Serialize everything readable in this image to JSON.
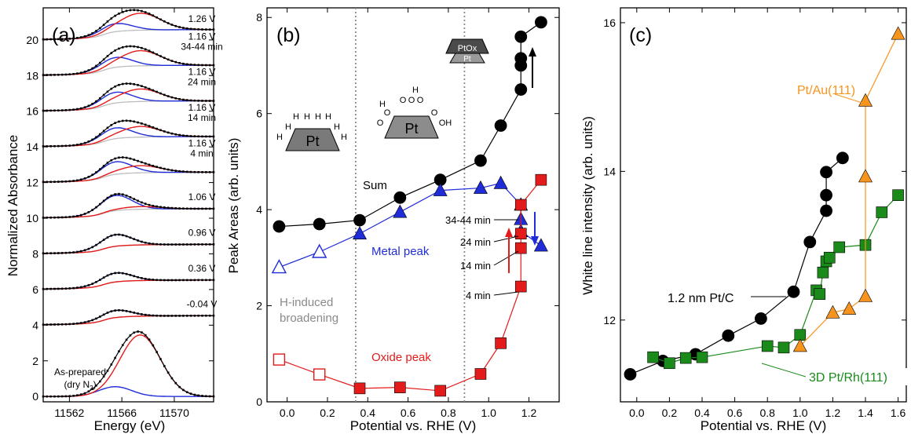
{
  "colors": {
    "black": "#000000",
    "blue": "#1f2cd8",
    "red": "#e31b1b",
    "gray": "#bdbdbd",
    "orange": "#f7941d",
    "green": "#1a8a1a",
    "dotted": "#8a8a8a"
  },
  "chart_data": [
    {
      "type": "line",
      "panel_label": "(a)",
      "xlabel": "Energy (eV)",
      "ylabel": "Normalized Absorbance",
      "xlim": [
        11560,
        11573
      ],
      "ylim": [
        -0.3,
        21.8
      ],
      "xticks": [
        11562,
        11566,
        11570
      ],
      "yticks": [
        0,
        2,
        4,
        6,
        8,
        10,
        12,
        14,
        16,
        18,
        20
      ],
      "spectra": [
        {
          "label": "As-prepared",
          "label2": "(dry N",
          "label2_sub": "2",
          "label2_end": ")",
          "offset": 0.0,
          "edge_step": 0.0,
          "metal": 0.55,
          "oxide": 3.45
        },
        {
          "label": "-0.04 V",
          "offset": 4.0,
          "edge_step": 0.55,
          "metal": 0.4,
          "oxide": 0.0
        },
        {
          "label": "0.36 V",
          "offset": 6.0,
          "edge_step": 0.55,
          "metal": 0.5,
          "oxide": 0.0
        },
        {
          "label": "0.96 V",
          "offset": 8.0,
          "edge_step": 0.55,
          "metal": 0.65,
          "oxide": 0.0
        },
        {
          "label": "1.06 V",
          "offset": 10.0,
          "edge_step": 0.55,
          "metal": 0.85,
          "oxide": 0.15
        },
        {
          "label": "1.16 V",
          "label2": "4 min",
          "offset": 12.0,
          "edge_step": 0.6,
          "metal": 0.7,
          "oxide": 0.4
        },
        {
          "label": "1.16 V",
          "label2": "14 min",
          "offset": 14.0,
          "edge_step": 0.6,
          "metal": 0.6,
          "oxide": 0.6
        },
        {
          "label": "1.16 V",
          "label2": "24 min",
          "offset": 16.0,
          "edge_step": 0.6,
          "metal": 0.6,
          "oxide": 0.7
        },
        {
          "label": "1.16 V",
          "label2": "34-44 min",
          "offset": 18.0,
          "edge_step": 0.6,
          "metal": 0.55,
          "oxide": 0.85
        },
        {
          "label": "1.26 V",
          "offset": 20.0,
          "edge_step": 0.6,
          "metal": 0.45,
          "oxide": 0.95
        }
      ]
    },
    {
      "type": "scatter",
      "panel_label": "(b)",
      "xlabel": "Potential vs. RHE (V)",
      "ylabel": "Peak Areas (arb. units)",
      "xlim": [
        -0.1,
        1.35
      ],
      "ylim": [
        0,
        8.2
      ],
      "xticks": [
        0.0,
        0.2,
        0.4,
        0.6,
        0.8,
        1.0,
        1.2
      ],
      "yticks": [
        0,
        2,
        4,
        6,
        8
      ],
      "vlines": [
        0.34,
        0.88
      ],
      "series": [
        {
          "name": "Sum",
          "color": "black",
          "marker": "circle",
          "points": [
            [
              -0.04,
              3.65
            ],
            [
              0.16,
              3.7
            ],
            [
              0.36,
              3.78
            ],
            [
              0.56,
              4.25
            ],
            [
              0.76,
              4.62
            ],
            [
              0.96,
              5.02
            ],
            [
              1.06,
              5.75
            ],
            [
              1.16,
              6.5
            ],
            [
              1.16,
              7.0
            ],
            [
              1.16,
              7.15
            ],
            [
              1.16,
              7.6
            ],
            [
              1.26,
              7.9
            ]
          ]
        },
        {
          "name": "Metal peak",
          "color": "blue",
          "marker": "triangle",
          "hollow_count": 2,
          "points": [
            [
              -0.04,
              2.8
            ],
            [
              0.16,
              3.12
            ],
            [
              0.36,
              3.5
            ],
            [
              0.56,
              3.95
            ],
            [
              0.76,
              4.4
            ],
            [
              0.96,
              4.45
            ],
            [
              1.06,
              4.55
            ],
            [
              1.16,
              4.1
            ],
            [
              1.16,
              3.8
            ],
            [
              1.16,
              3.55
            ],
            [
              1.26,
              3.25
            ]
          ]
        },
        {
          "name": "Oxide peak",
          "color": "red",
          "marker": "square",
          "hollow_count": 2,
          "points": [
            [
              -0.04,
              0.88
            ],
            [
              0.16,
              0.57
            ],
            [
              0.36,
              0.28
            ],
            [
              0.56,
              0.3
            ],
            [
              0.76,
              0.23
            ],
            [
              0.96,
              0.58
            ],
            [
              1.06,
              1.22
            ],
            [
              1.16,
              2.4
            ],
            [
              1.16,
              3.2
            ],
            [
              1.16,
              3.5
            ],
            [
              1.16,
              4.1
            ],
            [
              1.26,
              4.62
            ]
          ]
        }
      ],
      "annotations": {
        "sum": "Sum",
        "metal": "Metal peak",
        "oxide": "Oxide peak",
        "h_induced_1": "H-induced",
        "h_induced_2": "broadening",
        "t1": "34-44 min",
        "t2": "24 min",
        "t3": "14 min",
        "t4": "4 min",
        "pt": "Pt",
        "ptox": "PtOx",
        "h": "H",
        "o": "O",
        "oh": "OH"
      }
    },
    {
      "type": "scatter",
      "panel_label": "(c)",
      "xlabel": "Potential vs. RHE (V)",
      "ylabel": "White line intensity (arb. units)",
      "xlim": [
        -0.1,
        1.65
      ],
      "ylim": [
        10.9,
        16.2
      ],
      "xticks": [
        0.0,
        0.2,
        0.4,
        0.6,
        0.8,
        1.0,
        1.2,
        1.4,
        1.6
      ],
      "yticks": [
        12,
        14,
        16
      ],
      "series": [
        {
          "name": "1.2 nm Pt/C",
          "color": "black",
          "marker": "circle",
          "points": [
            [
              -0.04,
              11.27
            ],
            [
              0.16,
              11.45
            ],
            [
              0.36,
              11.54
            ],
            [
              0.56,
              11.79
            ],
            [
              0.76,
              12.02
            ],
            [
              0.96,
              12.38
            ],
            [
              1.06,
              13.05
            ],
            [
              1.16,
              13.47
            ],
            [
              1.16,
              13.68
            ],
            [
              1.16,
              13.99
            ],
            [
              1.26,
              14.18
            ]
          ]
        },
        {
          "name": "3D Pt/Rh(111)",
          "color": "green",
          "marker": "square",
          "points": [
            [
              0.1,
              11.5
            ],
            [
              0.2,
              11.42
            ],
            [
              0.3,
              11.49
            ],
            [
              0.4,
              11.5
            ],
            [
              0.8,
              11.65
            ],
            [
              0.9,
              11.63
            ],
            [
              1.0,
              11.8
            ],
            [
              1.1,
              12.4
            ],
            [
              1.12,
              12.35
            ],
            [
              1.14,
              12.64
            ],
            [
              1.16,
              12.79
            ],
            [
              1.18,
              12.84
            ],
            [
              1.24,
              12.98
            ],
            [
              1.4,
              13.01
            ],
            [
              1.5,
              13.45
            ],
            [
              1.6,
              13.68
            ]
          ]
        },
        {
          "name": "Pt/Au(111)",
          "color": "orange",
          "marker": "triangle",
          "points": [
            [
              1.0,
              11.65
            ],
            [
              1.2,
              12.1
            ],
            [
              1.3,
              12.15
            ],
            [
              1.4,
              12.32
            ],
            [
              1.4,
              13.93
            ],
            [
              1.4,
              14.95
            ],
            [
              1.6,
              15.85
            ]
          ]
        }
      ],
      "annotations": {
        "ptc": "1.2 nm Pt/C",
        "ptrh": "3D Pt/Rh(111)",
        "ptau": "Pt/Au(111)"
      }
    }
  ]
}
